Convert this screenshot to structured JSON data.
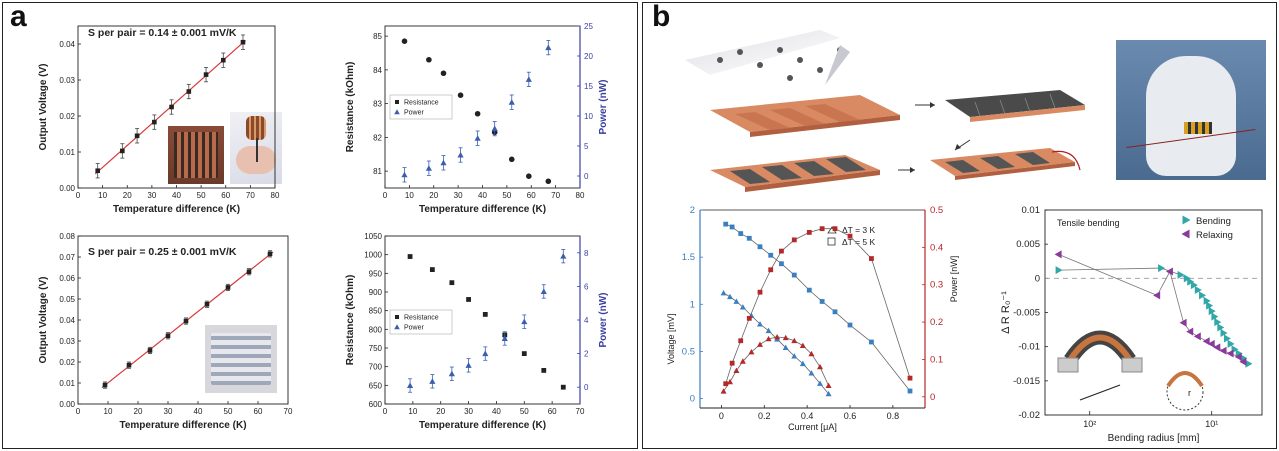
{
  "panel_labels": {
    "a": "a",
    "b": "b"
  },
  "colors": {
    "blue_axis": "#3a3fa0",
    "red_fit": "#d83a3a",
    "legend_blue": "#3a5fb0",
    "steel_blue": "#3a7fc0",
    "dark_red": "#b52828",
    "teal": "#30a8a8",
    "purple": "#8a3a9a"
  },
  "chart_data": [
    {
      "id": "a1",
      "type": "scatter",
      "annotation": "S per pair = 0.14 ± 0.001 mV/K",
      "xlabel": "Temperature difference (K)",
      "ylabel": "Output Voltage (V)",
      "xlim": [
        0,
        80
      ],
      "ylim": [
        0,
        0.045
      ],
      "xticks": [
        "0",
        "10",
        "20",
        "30",
        "40",
        "50",
        "60",
        "70",
        "80"
      ],
      "yticks": [
        "0.00",
        "0.01",
        "0.02",
        "0.03",
        "0.04"
      ],
      "x": [
        8,
        18,
        24,
        31,
        38,
        45,
        52,
        59,
        67
      ],
      "y": [
        0.0048,
        0.0103,
        0.0145,
        0.0183,
        0.0225,
        0.0268,
        0.0315,
        0.0355,
        0.0405
      ],
      "err": 0.002
    },
    {
      "id": "a2",
      "type": "scatter",
      "xlabel": "Temperature difference (K)",
      "ylabel": "Resistance (kOhm)",
      "y2label": "Power (nW)",
      "xlim": [
        0,
        80
      ],
      "ylim": [
        80.5,
        85.3
      ],
      "y2lim": [
        -2,
        25
      ],
      "xticks": [
        "0",
        "10",
        "20",
        "30",
        "40",
        "50",
        "60",
        "70",
        "80"
      ],
      "yticks": [
        "81",
        "82",
        "83",
        "84",
        "85"
      ],
      "y2ticks": [
        "0",
        "5",
        "10",
        "15",
        "20",
        "25"
      ],
      "legend": [
        "Resistance",
        "Power"
      ],
      "x": [
        8,
        18,
        24,
        31,
        38,
        45,
        52,
        59,
        67
      ],
      "resistance": [
        84.85,
        84.3,
        83.9,
        83.25,
        82.7,
        82.15,
        81.35,
        80.85,
        80.7
      ],
      "power": [
        0.2,
        1.3,
        2.2,
        3.5,
        6.3,
        7.9,
        12.3,
        16.1,
        21.4
      ],
      "power_err": 1.2
    },
    {
      "id": "a3",
      "type": "scatter",
      "annotation": "S per pair = 0.25 ± 0.001 mV/K",
      "xlabel": "Temperature difference (K)",
      "ylabel": "Output Voltage (V)",
      "xlim": [
        0,
        70
      ],
      "ylim": [
        0,
        0.08
      ],
      "xticks": [
        "0",
        "10",
        "20",
        "30",
        "40",
        "50",
        "60",
        "70"
      ],
      "yticks": [
        "0.00",
        "0.01",
        "0.02",
        "0.03",
        "0.04",
        "0.05",
        "0.06",
        "0.07",
        "0.08"
      ],
      "x": [
        9,
        17,
        24,
        30,
        36,
        43,
        50,
        57,
        64
      ],
      "y": [
        0.009,
        0.0185,
        0.0255,
        0.0325,
        0.0395,
        0.0475,
        0.0555,
        0.063,
        0.0715
      ],
      "err": 0.0015
    },
    {
      "id": "a4",
      "type": "scatter",
      "xlabel": "Temperature difference (K)",
      "ylabel": "Resistance (kOhm)",
      "y2label": "Power (nW)",
      "xlim": [
        0,
        70
      ],
      "ylim": [
        600,
        1050
      ],
      "y2lim": [
        -1,
        9
      ],
      "xticks": [
        "0",
        "10",
        "20",
        "30",
        "40",
        "50",
        "60",
        "70"
      ],
      "yticks": [
        "600",
        "650",
        "700",
        "750",
        "800",
        "850",
        "900",
        "950",
        "1000",
        "1050"
      ],
      "y2ticks": [
        "0",
        "2",
        "4",
        "6",
        "8"
      ],
      "legend": [
        "Resistance",
        "Power"
      ],
      "x": [
        9,
        17,
        24,
        30,
        36,
        43,
        50,
        57,
        64
      ],
      "resistance": [
        995,
        960,
        925,
        880,
        840,
        785,
        735,
        690,
        645
      ],
      "power": [
        0.1,
        0.35,
        0.8,
        1.3,
        2.0,
        2.9,
        3.9,
        5.7,
        7.8
      ],
      "power_err": 0.4
    },
    {
      "id": "b1",
      "type": "line",
      "xlabel": "Current [μA]",
      "ylabel": "Voltage [mV]",
      "y2label": "Power [nW]",
      "xlim": [
        -0.1,
        0.95
      ],
      "ylim": [
        -0.1,
        2.0
      ],
      "y2lim": [
        -0.03,
        0.5
      ],
      "xticks": [
        "0",
        "0.2",
        "0.4",
        "0.6",
        "0.8"
      ],
      "yticks": [
        "0",
        "0.5",
        "1",
        "1.5",
        "2"
      ],
      "y2ticks": [
        "0",
        "0.1",
        "0.2",
        "0.3",
        "0.4",
        "0.5"
      ],
      "legend": [
        "ΔT = 3 K",
        "ΔT = 5 K"
      ],
      "series": [
        {
          "name": "ΔT = 3 K",
          "current": [
            0.01,
            0.04,
            0.07,
            0.1,
            0.14,
            0.18,
            0.22,
            0.26,
            0.3,
            0.34,
            0.38,
            0.42,
            0.46,
            0.5
          ],
          "voltage": [
            1.12,
            1.08,
            1.03,
            0.97,
            0.88,
            0.79,
            0.72,
            0.63,
            0.54,
            0.45,
            0.37,
            0.27,
            0.16,
            0.05
          ],
          "power": [
            0.015,
            0.04,
            0.07,
            0.095,
            0.12,
            0.14,
            0.155,
            0.16,
            0.158,
            0.15,
            0.137,
            0.115,
            0.08,
            0.03
          ]
        },
        {
          "name": "ΔT = 5 K",
          "current": [
            0.02,
            0.05,
            0.09,
            0.13,
            0.18,
            0.23,
            0.28,
            0.34,
            0.41,
            0.47,
            0.53,
            0.6,
            0.7,
            0.88
          ],
          "voltage": [
            1.85,
            1.82,
            1.75,
            1.7,
            1.61,
            1.52,
            1.43,
            1.31,
            1.15,
            1.03,
            0.92,
            0.78,
            0.6,
            0.08
          ],
          "power": [
            0.035,
            0.09,
            0.15,
            0.21,
            0.28,
            0.34,
            0.39,
            0.42,
            0.44,
            0.45,
            0.45,
            0.43,
            0.37,
            0.05
          ]
        }
      ]
    },
    {
      "id": "b2",
      "type": "line",
      "annotation": "Tensile bending",
      "xlabel": "Bending radius [mm]",
      "ylabel": "Δ R R₀⁻¹",
      "xscale": "log",
      "xticks": [
        "10²",
        "10¹"
      ],
      "ylim": [
        -0.02,
        0.01
      ],
      "yticks": [
        "0.01",
        "0.005",
        "0",
        "-0.005",
        "-0.01",
        "-0.015",
        "-0.02"
      ],
      "legend": [
        "Bending",
        "Relaxing"
      ],
      "series": [
        {
          "name": "Bending",
          "radius": [
            180,
            26,
            18,
            16,
            15,
            14,
            13,
            12,
            11,
            10.5,
            10,
            9.5,
            9,
            8.5,
            8,
            7.5,
            7,
            6.5,
            6,
            5.5,
            5
          ],
          "delta": [
            0.0012,
            0.0015,
            0.0005,
            0.0,
            -0.0005,
            -0.001,
            -0.0017,
            -0.0025,
            -0.0033,
            -0.004,
            -0.0048,
            -0.0056,
            -0.0064,
            -0.0072,
            -0.008,
            -0.0088,
            -0.0096,
            -0.0104,
            -0.011,
            -0.0117,
            -0.0125
          ]
        },
        {
          "name": "Relaxing",
          "radius": [
            180,
            28,
            22,
            17,
            15,
            13,
            11,
            10,
            9,
            8,
            7,
            6,
            5.5
          ],
          "delta": [
            0.0035,
            -0.0025,
            0.001,
            -0.0065,
            -0.0078,
            -0.0085,
            -0.0092,
            -0.0096,
            -0.0101,
            -0.0106,
            -0.011,
            -0.0115,
            -0.0122
          ]
        }
      ],
      "inset_label": "r"
    }
  ]
}
